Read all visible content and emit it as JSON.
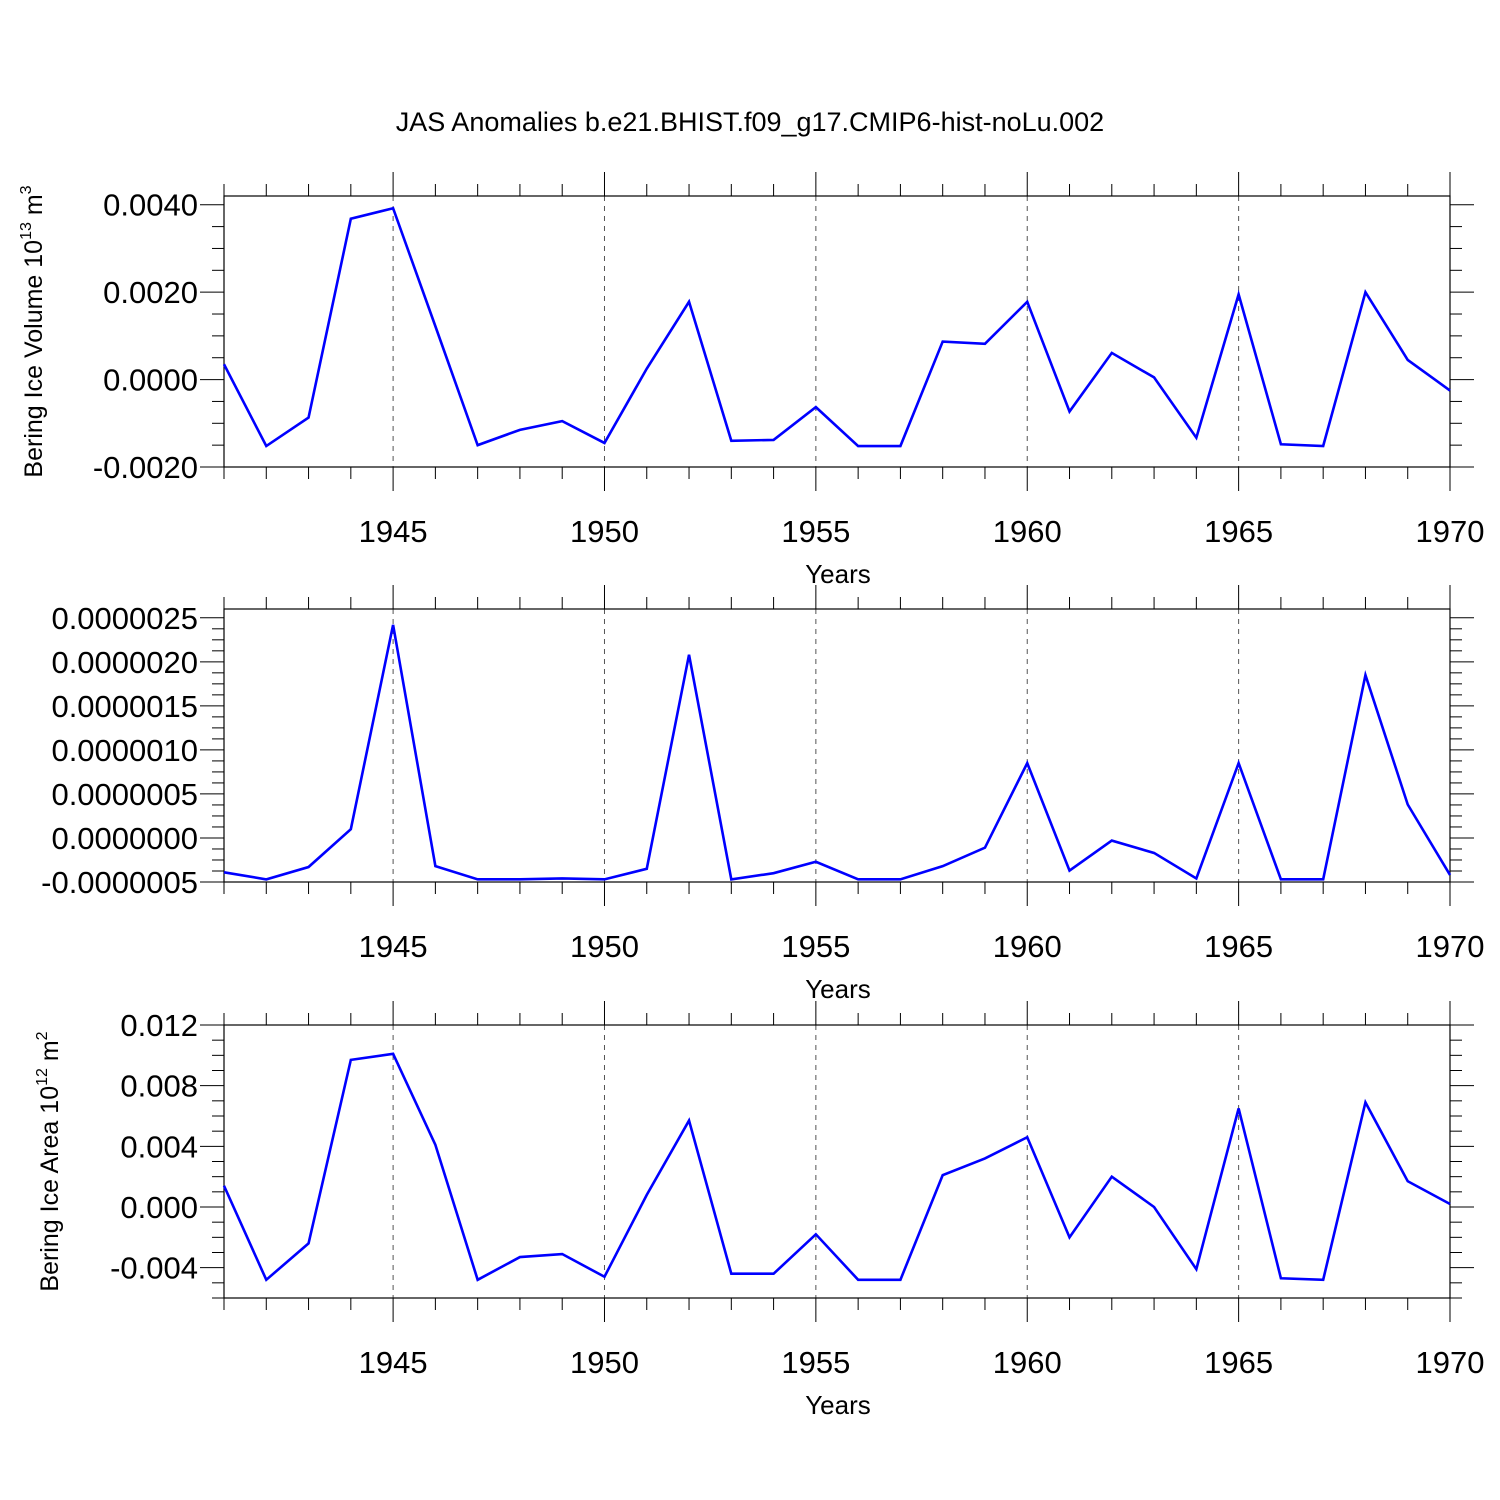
{
  "title": "JAS Anomalies b.e21.BHIST.f09_g17.CMIP6-hist-noLu.002",
  "colors": {
    "line": "#0000ff",
    "axis": "#000000",
    "grid": "#555555"
  },
  "chart_data": [
    {
      "type": "line",
      "ylabel": "Bering Ice Volume 10",
      "ylabel_sup": "13",
      "ylabel_unit": " m",
      "ylabel_unit_sup": "3",
      "xlabel": "Years",
      "xlim": [
        1941,
        1970
      ],
      "ylim": [
        -0.002,
        0.0042
      ],
      "yticks": [
        -0.002,
        0.0,
        0.002,
        0.004
      ],
      "ytick_labels": [
        "-0.0020",
        "0.0000",
        "0.0020",
        "0.0040"
      ],
      "xticks": [
        1945,
        1950,
        1955,
        1960,
        1965,
        1970
      ],
      "xtick_labels": [
        "1945",
        "1950",
        "1955",
        "1960",
        "1965",
        "1970"
      ],
      "grid": "vertical dashed at major x ticks",
      "x": [
        1941,
        1942,
        1943,
        1944,
        1945,
        1946,
        1947,
        1948,
        1949,
        1950,
        1951,
        1952,
        1953,
        1954,
        1955,
        1956,
        1957,
        1958,
        1959,
        1960,
        1961,
        1962,
        1963,
        1964,
        1965,
        1966,
        1967,
        1968,
        1969,
        1970
      ],
      "y": [
        0.00035,
        -0.00152,
        -0.00087,
        0.00368,
        0.00392,
        0.00122,
        -0.0015,
        -0.00115,
        -0.00095,
        -0.00145,
        0.00025,
        0.00178,
        -0.0014,
        -0.00138,
        -0.00063,
        -0.00152,
        -0.00152,
        0.00087,
        0.00082,
        0.00178,
        -0.00073,
        0.00061,
        5e-05,
        -0.00133,
        0.00195,
        -0.00148,
        -0.00152,
        0.002,
        0.00045,
        -0.00025
      ]
    },
    {
      "type": "line",
      "ylabel": "",
      "xlabel": "Years",
      "xlim": [
        1941,
        1970
      ],
      "ylim": [
        -5e-07,
        2.6e-06
      ],
      "yticks": [
        -5e-07,
        0.0,
        5e-07,
        1e-06,
        1.5e-06,
        2e-06,
        2.5e-06
      ],
      "ytick_labels": [
        "-0.0000005",
        "0.0000000",
        "0.0000005",
        "0.0000010",
        "0.0000015",
        "0.0000020",
        "0.0000025"
      ],
      "xticks": [
        1945,
        1950,
        1955,
        1960,
        1965,
        1970
      ],
      "xtick_labels": [
        "1945",
        "1950",
        "1955",
        "1960",
        "1965",
        "1970"
      ],
      "grid": "vertical dashed at major x ticks",
      "x": [
        1941,
        1942,
        1943,
        1944,
        1945,
        1946,
        1947,
        1948,
        1949,
        1950,
        1951,
        1952,
        1953,
        1954,
        1955,
        1956,
        1957,
        1958,
        1959,
        1960,
        1961,
        1962,
        1963,
        1964,
        1965,
        1966,
        1967,
        1968,
        1969,
        1970
      ],
      "y": [
        -3.9e-07,
        -4.7e-07,
        -3.3e-07,
        1e-07,
        2.42e-06,
        -3.2e-07,
        -4.7e-07,
        -4.7e-07,
        -4.6e-07,
        -4.7e-07,
        -3.5e-07,
        2.08e-06,
        -4.7e-07,
        -4e-07,
        -2.7e-07,
        -4.7e-07,
        -4.7e-07,
        -3.2e-07,
        -1.1e-07,
        8.5e-07,
        -3.7e-07,
        -3e-08,
        -1.7e-07,
        -4.6e-07,
        8.5e-07,
        -4.7e-07,
        -4.7e-07,
        1.85e-06,
        3.8e-07,
        -4.2e-07
      ]
    },
    {
      "type": "line",
      "ylabel": "Bering Ice Area 10",
      "ylabel_sup": "12",
      "ylabel_unit": " m",
      "ylabel_unit_sup": "2",
      "xlabel": "Years",
      "xlim": [
        1941,
        1970
      ],
      "ylim": [
        -0.006,
        0.012
      ],
      "yticks": [
        -0.004,
        0.0,
        0.004,
        0.008,
        0.012
      ],
      "ytick_labels": [
        "-0.004",
        "0.000",
        "0.004",
        "0.008",
        "0.012"
      ],
      "xticks": [
        1945,
        1950,
        1955,
        1960,
        1965,
        1970
      ],
      "xtick_labels": [
        "1945",
        "1950",
        "1955",
        "1960",
        "1965",
        "1970"
      ],
      "grid": "vertical dashed at major x ticks",
      "x": [
        1941,
        1942,
        1943,
        1944,
        1945,
        1946,
        1947,
        1948,
        1949,
        1950,
        1951,
        1952,
        1953,
        1954,
        1955,
        1956,
        1957,
        1958,
        1959,
        1960,
        1961,
        1962,
        1963,
        1964,
        1965,
        1966,
        1967,
        1968,
        1969,
        1970
      ],
      "y": [
        0.0014,
        -0.0048,
        -0.0024,
        0.0097,
        0.0101,
        0.0041,
        -0.0048,
        -0.0033,
        -0.0031,
        -0.0046,
        0.0008,
        0.0057,
        -0.0044,
        -0.0044,
        -0.0018,
        -0.0048,
        -0.0048,
        0.0021,
        0.0032,
        0.0046,
        -0.002,
        0.002,
        0.0,
        -0.0041,
        0.0065,
        -0.0047,
        -0.0048,
        0.0069,
        0.0017,
        0.0002
      ]
    }
  ]
}
